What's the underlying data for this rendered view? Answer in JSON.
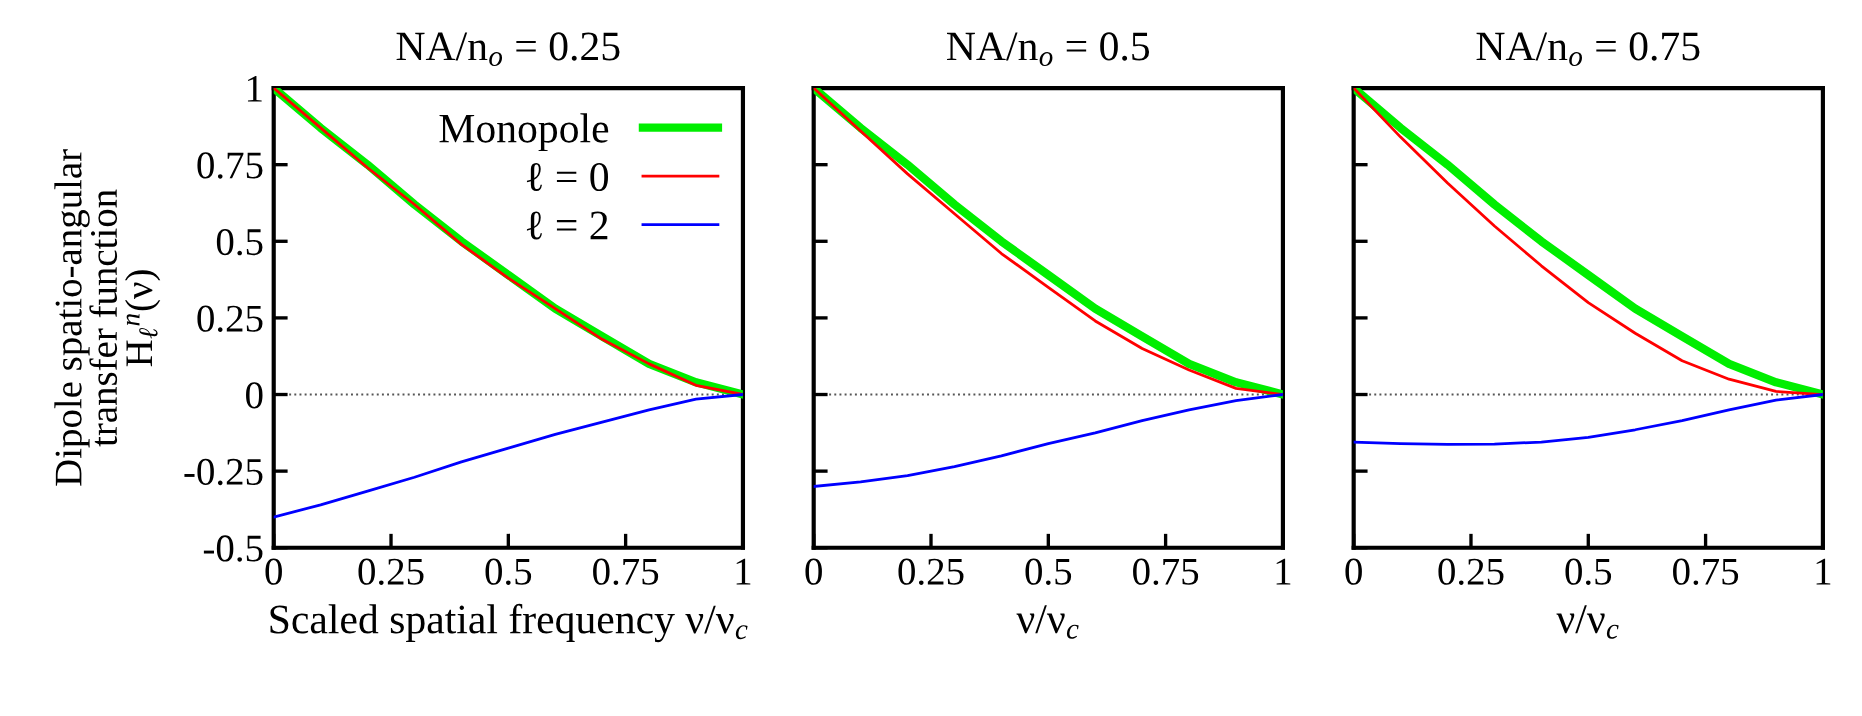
{
  "chart_data": [
    {
      "type": "line",
      "title": "NA/n$_{o}$ = 0.25",
      "xlabel": "Scaled spatial frequency ν/ν$_{c}$",
      "ylabel": "Dipole spatio-angular\ntransfer function\nH$_{ℓ}$$^{n}$(ν)",
      "x": [
        0,
        0.1,
        0.2,
        0.3,
        0.4,
        0.5,
        0.6,
        0.7,
        0.8,
        0.9,
        1
      ],
      "series": [
        {
          "name": "Monopole",
          "color": "#00ee00",
          "values": [
            1,
            0.87,
            0.75,
            0.62,
            0.5,
            0.39,
            0.28,
            0.19,
            0.1,
            0.04,
            0
          ]
        },
        {
          "name": "ℓ = 0",
          "color": "#ff0000",
          "values": [
            1,
            0.87,
            0.74,
            0.62,
            0.49,
            0.38,
            0.28,
            0.18,
            0.1,
            0.03,
            0
          ]
        },
        {
          "name": "ℓ = 2",
          "color": "#0000ff",
          "values": [
            -0.4,
            -0.36,
            -0.315,
            -0.27,
            -0.22,
            -0.175,
            -0.13,
            -0.09,
            -0.05,
            -0.015,
            0
          ]
        }
      ],
      "xlim": [
        0,
        1
      ],
      "xticks": [
        0,
        0.25,
        0.5,
        0.75,
        1
      ],
      "ylim": [
        -0.5,
        1
      ],
      "yticks": [
        -0.5,
        -0.25,
        0,
        0.25,
        0.5,
        0.75,
        1
      ],
      "ref_lines": [
        {
          "axis": "y",
          "value": 0,
          "color": "#555555",
          "line_style": "dotted"
        }
      ],
      "legend": "top right",
      "grid": false
    },
    {
      "type": "line",
      "title": "NA/n$_{o}$ = 0.5",
      "xlabel": "ν/ν$_{c}$",
      "x": [
        0,
        0.1,
        0.2,
        0.3,
        0.4,
        0.5,
        0.6,
        0.7,
        0.8,
        0.9,
        1
      ],
      "series": [
        {
          "color": "#00ee00",
          "values": [
            1,
            0.87,
            0.75,
            0.62,
            0.5,
            0.39,
            0.28,
            0.19,
            0.1,
            0.04,
            0
          ]
        },
        {
          "color": "#ff0000",
          "values": [
            1,
            0.86,
            0.72,
            0.59,
            0.46,
            0.35,
            0.24,
            0.15,
            0.08,
            0.02,
            0
          ]
        },
        {
          "color": "#0000ff",
          "values": [
            -0.3,
            -0.285,
            -0.265,
            -0.235,
            -0.2,
            -0.16,
            -0.125,
            -0.085,
            -0.05,
            -0.02,
            0
          ]
        }
      ],
      "xlim": [
        0,
        1
      ],
      "xticks": [
        0,
        0.25,
        0.5,
        0.75,
        1
      ],
      "ylim": [
        -0.5,
        1
      ],
      "yticks": [
        -0.5,
        -0.25,
        0,
        0.25,
        0.5,
        0.75,
        1
      ],
      "ref_lines": [
        {
          "axis": "y",
          "value": 0,
          "color": "#555555",
          "line_style": "dotted"
        }
      ],
      "tick_labels": "x",
      "grid": false
    },
    {
      "type": "line",
      "title": "NA/n$_{o}$ = 0.75",
      "xlabel": "ν/ν$_{c}$",
      "x": [
        0,
        0.1,
        0.2,
        0.3,
        0.4,
        0.5,
        0.6,
        0.7,
        0.8,
        0.9,
        1
      ],
      "series": [
        {
          "color": "#00ee00",
          "values": [
            1,
            0.87,
            0.75,
            0.62,
            0.5,
            0.39,
            0.28,
            0.19,
            0.1,
            0.04,
            0
          ]
        },
        {
          "color": "#ff0000",
          "values": [
            1,
            0.84,
            0.69,
            0.55,
            0.42,
            0.3,
            0.2,
            0.11,
            0.05,
            0.01,
            0
          ]
        },
        {
          "color": "#0000ff",
          "values": [
            -0.155,
            -0.16,
            -0.163,
            -0.162,
            -0.155,
            -0.14,
            -0.115,
            -0.085,
            -0.05,
            -0.018,
            0
          ]
        }
      ],
      "xlim": [
        0,
        1
      ],
      "xticks": [
        0,
        0.25,
        0.5,
        0.75,
        1
      ],
      "ylim": [
        -0.5,
        1
      ],
      "yticks": [
        -0.5,
        -0.25,
        0,
        0.25,
        0.5,
        0.75,
        1
      ],
      "ref_lines": [
        {
          "axis": "y",
          "value": 0,
          "color": "#555555",
          "line_style": "dotted"
        }
      ],
      "tick_labels": "x",
      "grid": false
    }
  ]
}
